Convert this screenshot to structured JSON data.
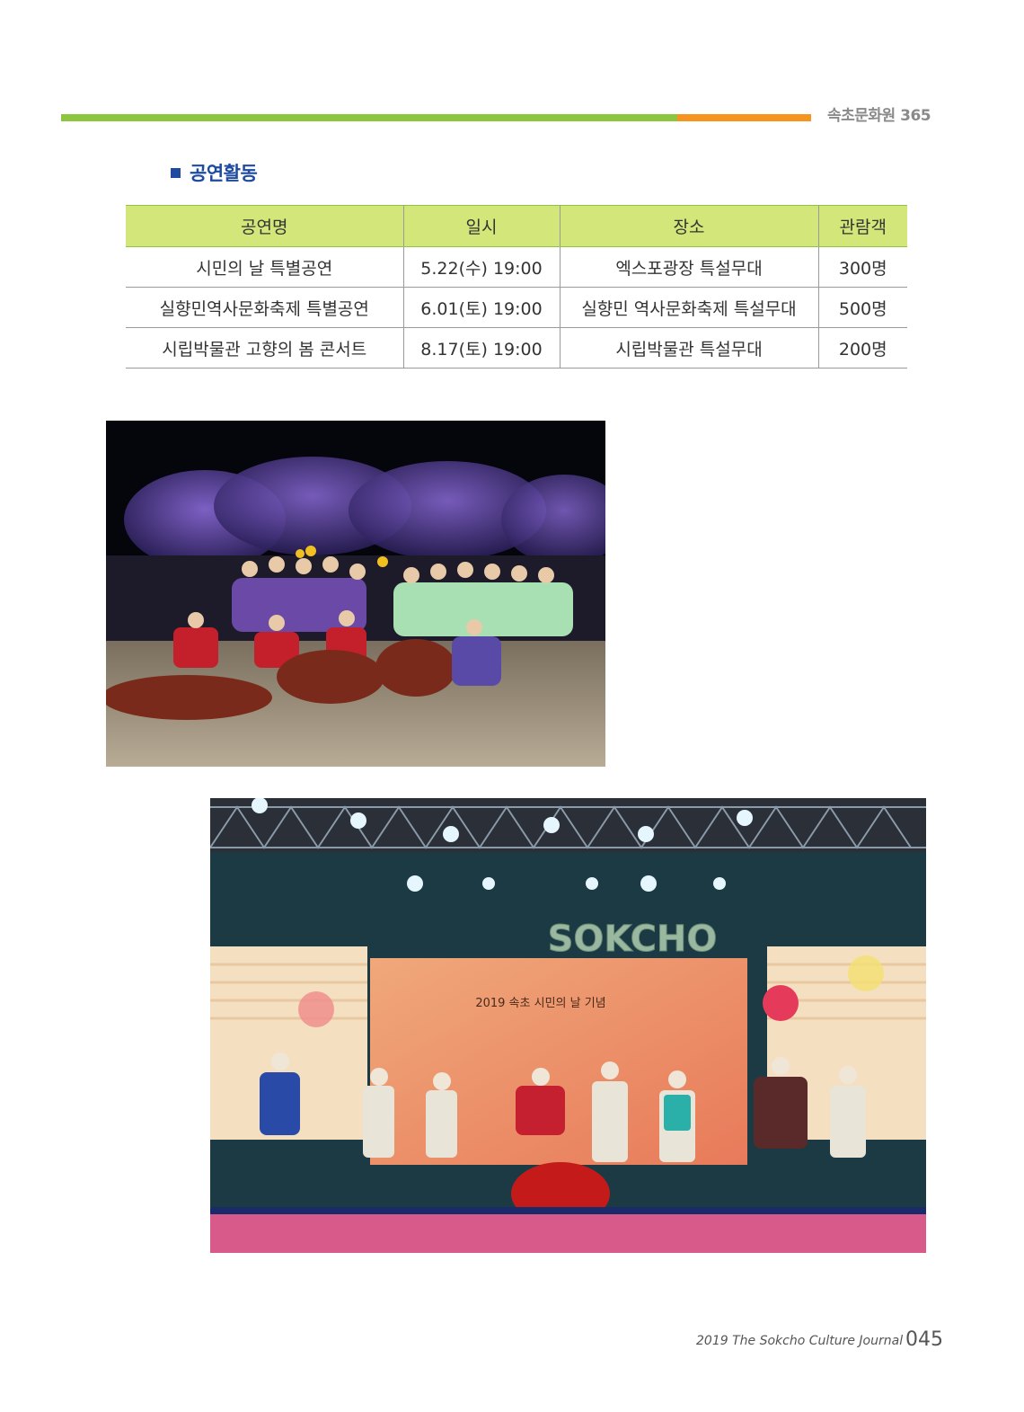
{
  "header": {
    "label": "속초문화원 365",
    "accent_green": "#8cc63f",
    "accent_orange": "#f7941d"
  },
  "section": {
    "title": "공연활동",
    "title_color": "#1e4aa0"
  },
  "table": {
    "header_bg": "#d2e679",
    "columns": [
      "공연명",
      "일시",
      "장소",
      "관람객"
    ],
    "rows": [
      [
        "시민의 날 특별공연",
        "5.22(수) 19:00",
        "엑스포광장 특설무대",
        "300명"
      ],
      [
        "실향민역사문화축제 특별공연",
        "6.01(토) 19:00",
        "실향민 역사문화축제 특설무대",
        "500명"
      ],
      [
        "시립박물관 고향의 봄 콘서트",
        "8.17(토) 19:00",
        "시립박물관 특설무대",
        "200명"
      ]
    ]
  },
  "photos": {
    "stage_sign": "SOKCHO",
    "banner_text": "2019 속초 시민의 날 기념"
  },
  "footer": {
    "journal": "2019 The Sokcho Culture Journal",
    "page": "045"
  }
}
